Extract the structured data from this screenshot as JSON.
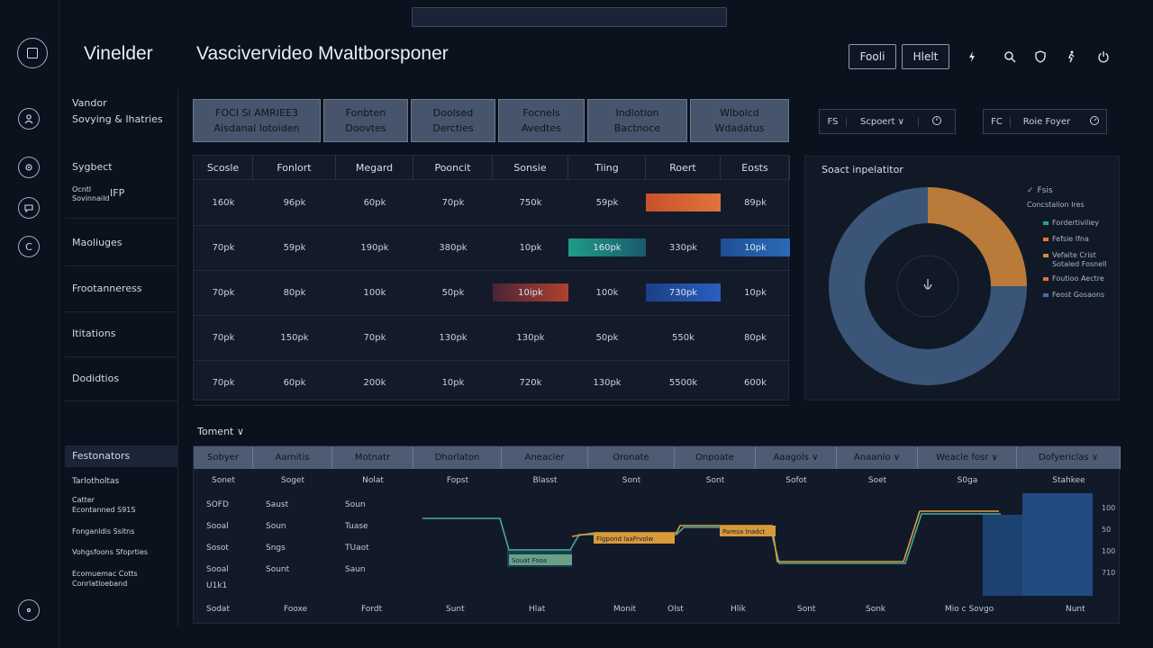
{
  "header": {
    "brand": "Vinelder",
    "title": "Vascivervideo Mvaltborsponer",
    "btn_a": "Fooli",
    "btn_b": "Hlelt",
    "icons": [
      "bolt-icon",
      "search-icon",
      "shield-icon",
      "run-icon",
      "power-icon"
    ]
  },
  "rail": {
    "item_c": "C"
  },
  "nav": {
    "top": [
      "Vandor",
      "Sovying & Ihatries"
    ],
    "section": "Sygbect",
    "items": [
      {
        "line1": "Ocntl",
        "line2": "Sovinnaild",
        "tag": "IFP"
      },
      {
        "line1": "Maoliuges"
      },
      {
        "line1": "Frootanneress"
      },
      {
        "line1": "Ititations"
      },
      {
        "line1": "Dodidtios"
      }
    ],
    "active": "Festonators",
    "lower": [
      {
        "line1": "Tarlotholtas"
      },
      {
        "line1": "Catter",
        "line2": "Econtanned S91S"
      },
      {
        "line1": "Fonganldis Ssitns"
      },
      {
        "line1": "Vohgsfoons Sfoprties"
      },
      {
        "line1": "Ecomuemac Cotts",
        "line2": "Conrlatloeband"
      }
    ]
  },
  "stat_cards": [
    {
      "line1": "FOCI SI AMRIEE3",
      "line2": "Aisdanal lotoiden"
    },
    {
      "line1": "Fonbten",
      "line2": "Doovtes"
    },
    {
      "line1": "Doolsed",
      "line2": "Dercties"
    },
    {
      "line1": "Focnels",
      "line2": "Avedtes"
    },
    {
      "line1": "Indlotion",
      "line2": "Bactnoce"
    },
    {
      "line1": "Wlbolcd",
      "line2": "Wdadatus"
    }
  ],
  "matrix": {
    "columns": [
      "Scosle",
      "Fonlort",
      "Megard",
      "Pooncit",
      "Sonsie",
      "Tiing",
      "Roert",
      "Eosts"
    ],
    "rows": [
      [
        "160k",
        "96pk",
        "60pk",
        "70pk",
        "750k",
        "59pk",
        "",
        "89pk"
      ],
      [
        "70pk",
        "59pk",
        "190pk",
        "380pk",
        "10pk",
        "",
        "330pk",
        ""
      ],
      [
        "70pk",
        "80pk",
        "100k",
        "50pk",
        "",
        "100k",
        "",
        "10pk"
      ],
      [
        "70pk",
        "150pk",
        "70pk",
        "130pk",
        "130pk",
        "50pk",
        "550k",
        "80pk"
      ],
      [
        "70pk",
        "60pk",
        "200k",
        "10pk",
        "720k",
        "130pk",
        "5500k",
        "600k"
      ]
    ],
    "heat_labels": {
      "r1c5": "10ipk",
      "r2c4": "160pk",
      "r2c6": "730pk",
      "r1c7": "10pk"
    }
  },
  "filters": {
    "a_label": "FS",
    "a_value": "Scpoert ∨",
    "b_label": "FC",
    "b_value": "Roie Foyer"
  },
  "donut": {
    "title": "Soact inpelatitor",
    "legend_head": "Fsis",
    "legend_sub": "Concstalion Ires",
    "legend": [
      {
        "label": "Fordertiviliey",
        "color": "#2fa57f"
      },
      {
        "label": "Fefsie Ifna",
        "color": "#e07a3c"
      },
      {
        "label": "Vefaite Crist",
        "label2": "Sotaled Fosnell",
        "color": "#d88a3a"
      },
      {
        "label": "Foutioo Aectre",
        "color": "#e0703c"
      },
      {
        "label": "Feost Gosaons",
        "color": "#3f6db0"
      }
    ],
    "chart_data": {
      "type": "pie",
      "values": [
        25,
        75
      ],
      "colors": [
        "#b97a3a",
        "#3a5577"
      ]
    }
  },
  "bottom": {
    "section_label": "Toment ∨",
    "columns": [
      "Sobyer",
      "Aarnitis",
      "Motnatr",
      "Dhorlaton",
      "Aneacler",
      "Oronate",
      "Onpoate",
      "Aaagols ∨",
      "Anaanlo ∨",
      "Weacle fosr ∨",
      "Dofyericlas ∨"
    ],
    "row1": [
      "Sonet",
      "Soget",
      "Nolat",
      "Fopst",
      "Blasst",
      "Sont",
      "Sont",
      "Sofot",
      "Soet",
      "S0ga",
      "Stahkee"
    ],
    "left_cells": [
      [
        "SOFD",
        "Saust",
        "Soun"
      ],
      [
        "Sooal",
        "Soun",
        "Tuase"
      ],
      [
        "Sosot",
        "Sngs",
        "TUaot"
      ],
      [
        "Sooal",
        "Sount",
        "Saun"
      ]
    ],
    "left_cell_extra": "U1k1",
    "footer": [
      "Sodat",
      "Fooxe",
      "Fordt",
      "Sunt",
      "Hlat",
      "Monit",
      "Olst",
      "Hlik",
      "Sont",
      "Sonk",
      "Mio c Sovgo",
      "Nunt"
    ],
    "tags": {
      "teal": "Souat Fooa",
      "orange1": "Flgpond laaFrvolw",
      "orange2": "Paresa Inadct"
    },
    "axis": [
      "100",
      "50",
      "100",
      "710"
    ]
  }
}
